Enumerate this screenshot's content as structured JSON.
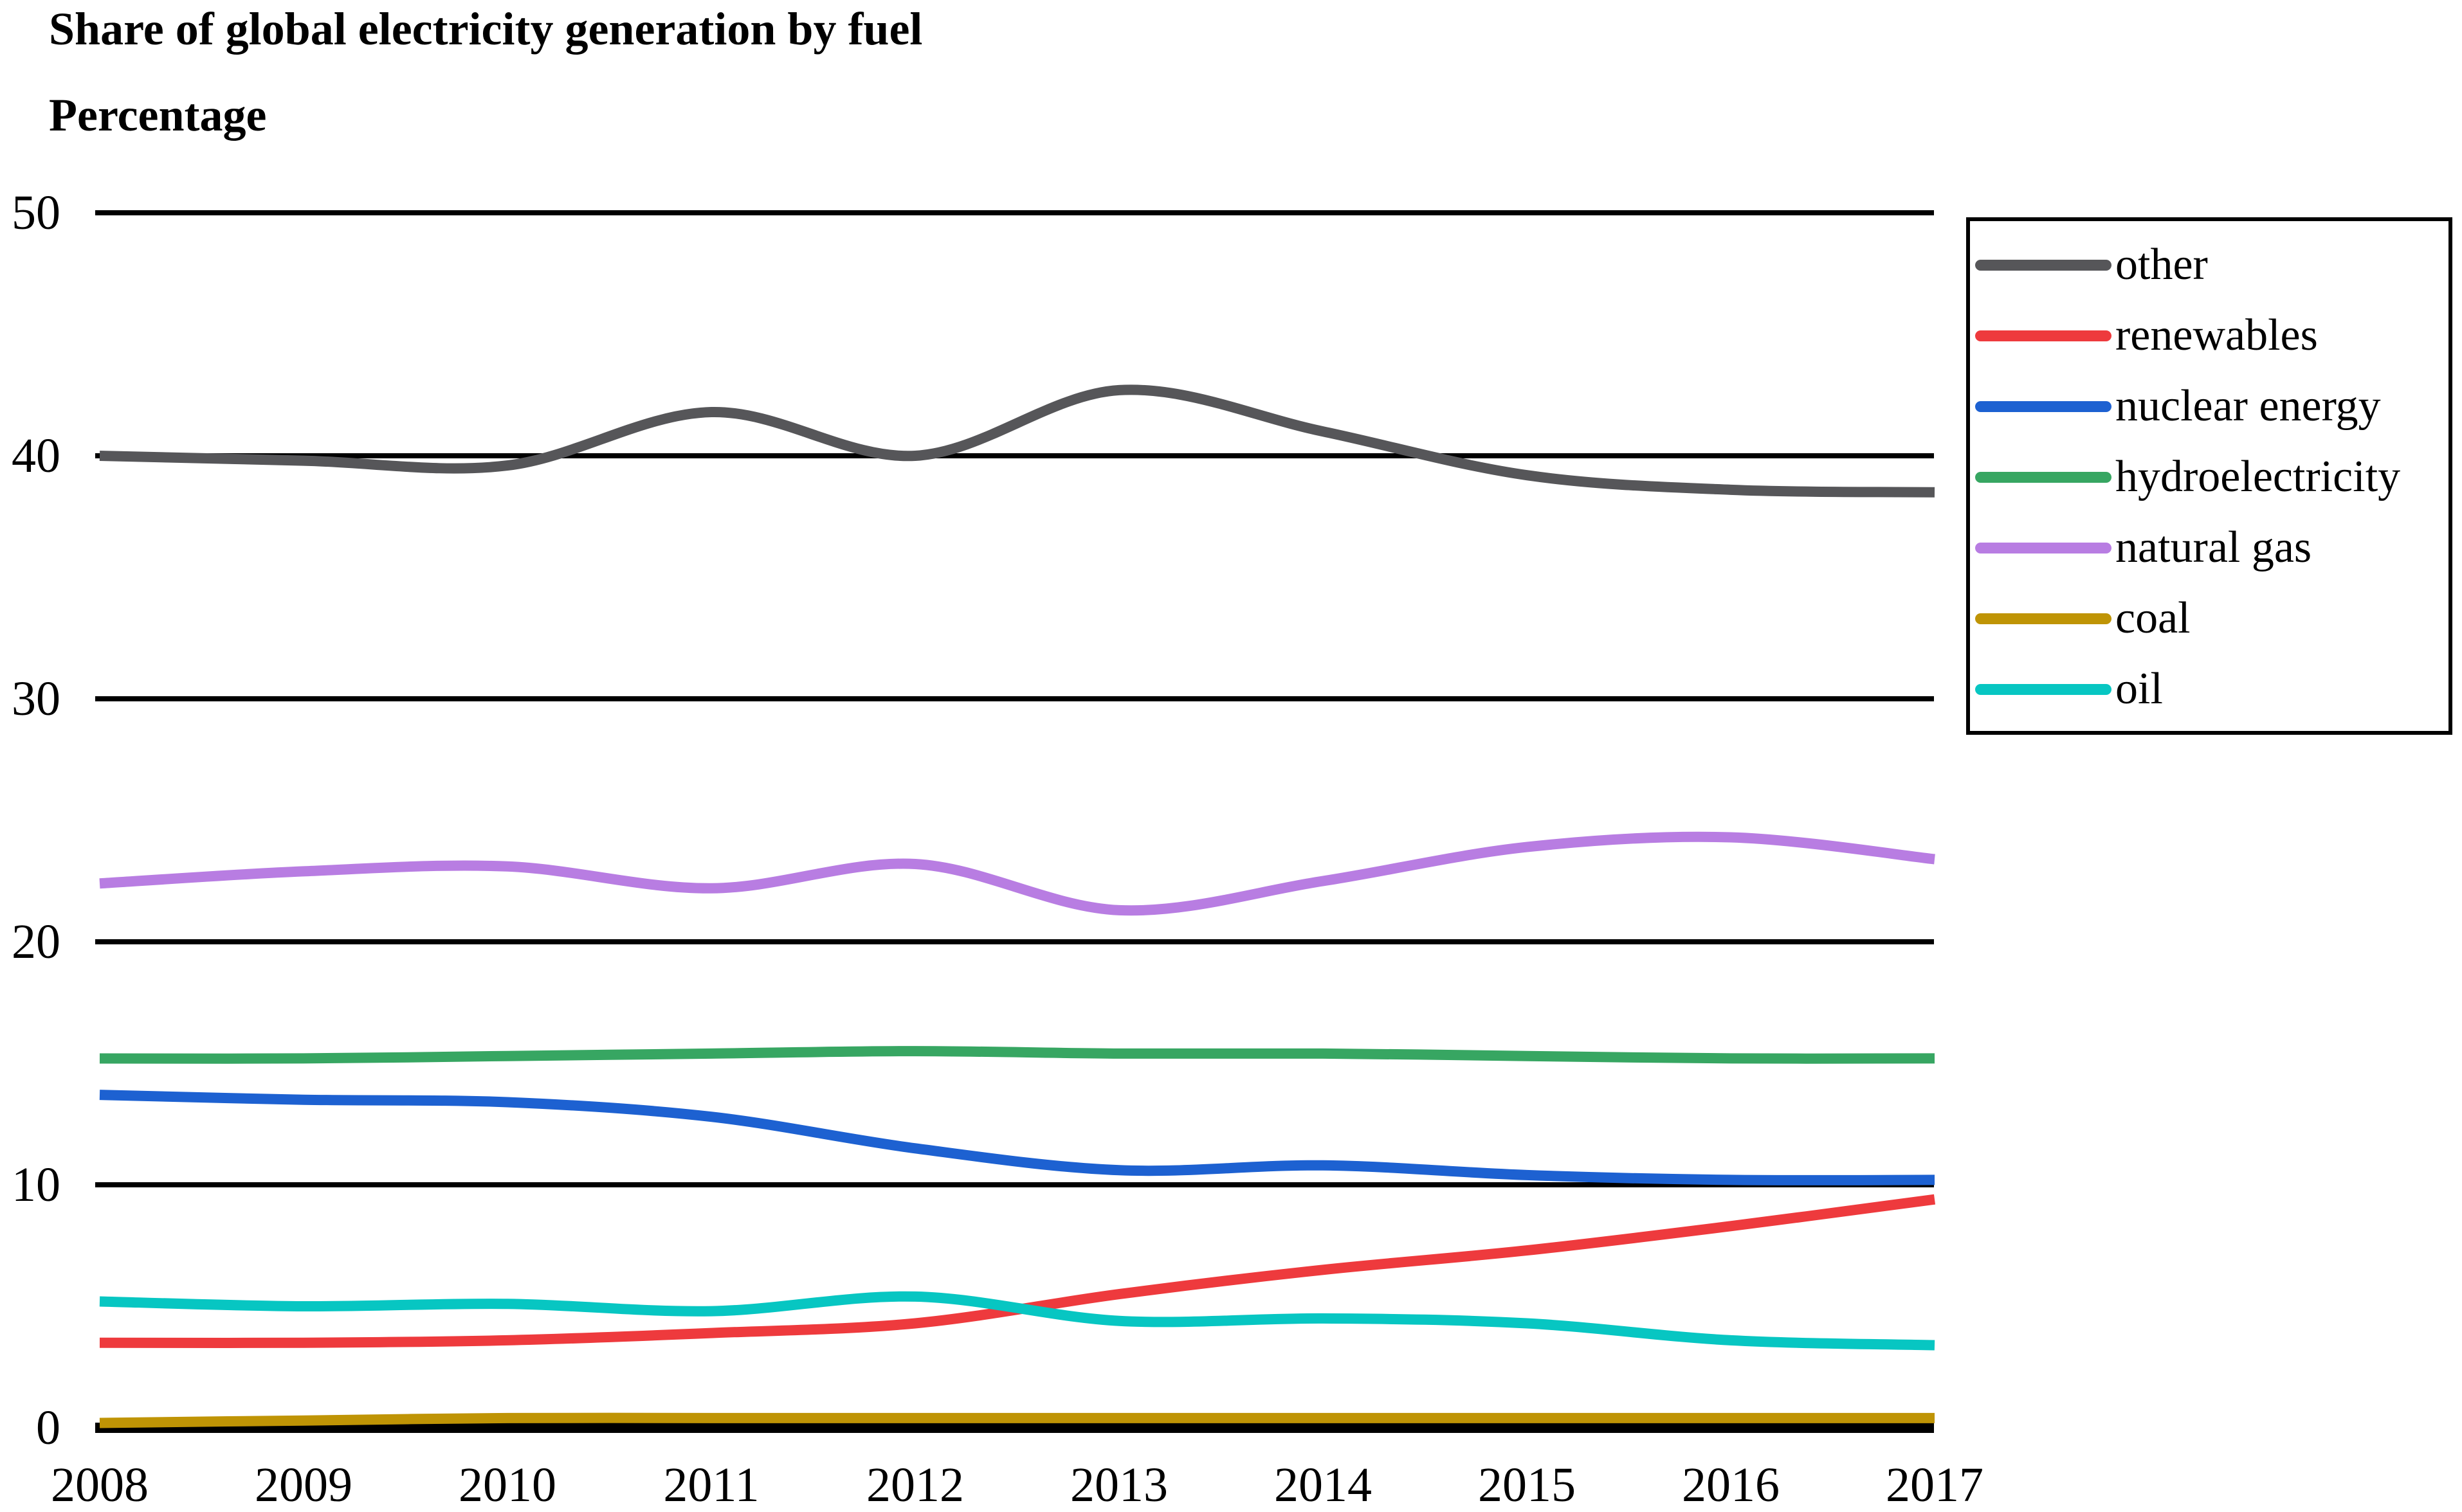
{
  "title": "Share of global electricity generation by fuel",
  "subtitle": "Percentage",
  "chart_data": {
    "type": "line",
    "title": "Share of global electricity generation by fuel",
    "ylabel": "Percentage",
    "xlabel": "",
    "x": [
      2008,
      2009,
      2010,
      2011,
      2012,
      2013,
      2014,
      2015,
      2016,
      2017
    ],
    "ylim": [
      0,
      50
    ],
    "yticks": [
      0,
      10,
      20,
      30,
      40,
      50
    ],
    "grid": "horizontal-black-lines",
    "legend_position": "right",
    "background_color": "#ffffff",
    "axis_color": "#000000",
    "series": [
      {
        "name": "other",
        "color": "#565659",
        "values": [
          40.0,
          39.8,
          39.6,
          41.8,
          40.0,
          42.7,
          41.0,
          39.2,
          38.6,
          38.5
        ]
      },
      {
        "name": "renewables",
        "color": "#ee3a3d",
        "values": [
          3.5,
          3.5,
          3.6,
          3.9,
          4.3,
          5.5,
          6.5,
          7.3,
          8.3,
          9.4
        ]
      },
      {
        "name": "nuclear energy",
        "color": "#1d61d1",
        "values": [
          13.7,
          13.5,
          13.4,
          12.8,
          11.5,
          10.6,
          10.8,
          10.4,
          10.2,
          10.2
        ]
      },
      {
        "name": "hydroelectricity",
        "color": "#37a662",
        "values": [
          15.2,
          15.2,
          15.3,
          15.4,
          15.5,
          15.4,
          15.4,
          15.3,
          15.2,
          15.2
        ]
      },
      {
        "name": "natural gas",
        "color": "#b87de2",
        "values": [
          22.4,
          22.9,
          23.1,
          22.2,
          23.2,
          21.3,
          22.5,
          23.9,
          24.3,
          23.4
        ]
      },
      {
        "name": "coal",
        "color": "#bf9405",
        "values": [
          0.2,
          0.3,
          0.4,
          0.4,
          0.4,
          0.4,
          0.4,
          0.4,
          0.4,
          0.4
        ]
      },
      {
        "name": "oil",
        "color": "#07c6c2",
        "values": [
          5.2,
          5.0,
          5.1,
          4.8,
          5.4,
          4.4,
          4.5,
          4.3,
          3.6,
          3.4
        ]
      }
    ]
  }
}
